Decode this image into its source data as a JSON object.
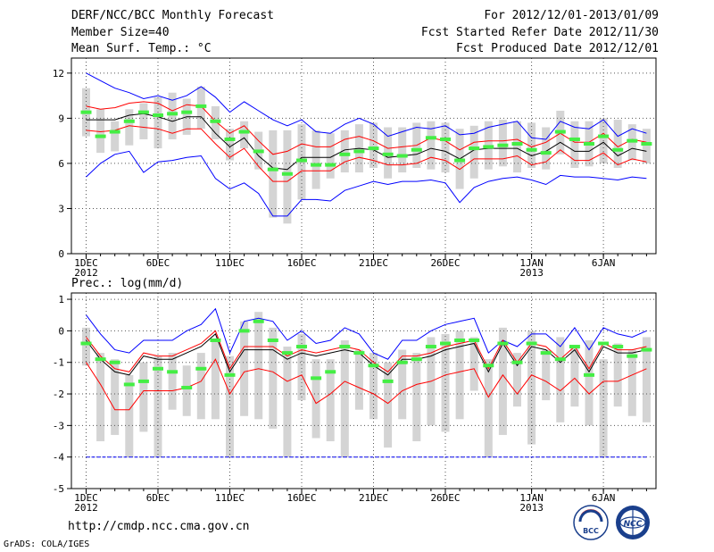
{
  "header": {
    "title": "DERF/NCC/BCC Monthly Forecast",
    "member_size": "Member Size=40",
    "variable": "Mean Surf. Temp.: °C",
    "forecast_period": "For 2012/12/01-2013/01/09",
    "started_date": "Fcst Started Refer Date 2012/11/30",
    "produced_date": "Fcst Produced Date 2012/12/01"
  },
  "footer": {
    "url": "http://cmdp.ncc.cma.gov.cn",
    "grads_credit": "GrADS: COLA/IGES"
  },
  "logos": {
    "bcc": "BCC",
    "ncc": "NCC"
  },
  "colors": {
    "box": "#d4d4d4",
    "mean": "#000000",
    "spread": "#ff0000",
    "envelope": "#0000ff",
    "marker": "#44ee44"
  },
  "chart_data": [
    {
      "type": "box",
      "title": "Mean Surf. Temp.: °C",
      "ylim": [
        0,
        13
      ],
      "yticks": [
        0,
        3,
        6,
        9,
        12
      ],
      "xticks": [
        {
          "day": 1,
          "label": "1DEC",
          "sub": "2012"
        },
        {
          "day": 6,
          "label": "6DEC",
          "sub": ""
        },
        {
          "day": 11,
          "label": "11DEC",
          "sub": ""
        },
        {
          "day": 16,
          "label": "16DEC",
          "sub": ""
        },
        {
          "day": 21,
          "label": "21DEC",
          "sub": ""
        },
        {
          "day": 26,
          "label": "26DEC",
          "sub": ""
        },
        {
          "day": 32,
          "label": "1JAN",
          "sub": "2013"
        },
        {
          "day": 37,
          "label": "6JAN",
          "sub": ""
        }
      ],
      "days": [
        1,
        2,
        3,
        4,
        5,
        6,
        7,
        8,
        9,
        10,
        11,
        12,
        13,
        14,
        15,
        16,
        17,
        18,
        19,
        20,
        21,
        22,
        23,
        24,
        25,
        26,
        27,
        28,
        29,
        30,
        31,
        32,
        33,
        34,
        35,
        36,
        37,
        38,
        39,
        40
      ],
      "box_low": [
        7.8,
        6.7,
        6.8,
        7.2,
        7.6,
        7.0,
        7.6,
        7.9,
        8.3,
        7.6,
        6.2,
        7.0,
        5.6,
        2.4,
        2.0,
        3.6,
        4.3,
        5.0,
        5.4,
        5.4,
        5.7,
        5.0,
        5.4,
        5.7,
        5.6,
        5.4,
        4.3,
        5.0,
        5.6,
        5.8,
        5.4,
        5.7,
        5.6,
        6.6,
        5.7,
        5.8,
        6.0,
        5.7,
        6.2,
        6.0
      ],
      "box_high": [
        11.0,
        9.6,
        8.8,
        9.6,
        10.0,
        10.4,
        10.7,
        10.3,
        11.1,
        9.8,
        8.3,
        8.8,
        8.1,
        8.2,
        8.2,
        8.6,
        8.2,
        8.0,
        8.2,
        8.6,
        8.7,
        8.4,
        8.4,
        8.7,
        8.8,
        8.7,
        8.3,
        8.5,
        8.8,
        8.9,
        8.8,
        8.7,
        8.4,
        9.5,
        8.8,
        8.8,
        9.0,
        8.9,
        8.6,
        8.3
      ],
      "marker": [
        9.4,
        7.8,
        8.1,
        8.8,
        9.4,
        9.2,
        9.3,
        9.4,
        9.8,
        8.8,
        7.6,
        8.1,
        6.8,
        5.6,
        5.3,
        6.2,
        5.9,
        5.9,
        6.6,
        6.8,
        7.0,
        6.6,
        6.5,
        6.9,
        7.7,
        7.6,
        6.2,
        7.0,
        7.1,
        7.2,
        7.3,
        6.9,
        6.7,
        8.1,
        7.6,
        7.3,
        7.8,
        6.9,
        7.5,
        7.3
      ],
      "ens_mean": [
        8.9,
        8.9,
        8.9,
        9.2,
        9.3,
        9.1,
        8.8,
        9.1,
        9.1,
        8.0,
        7.1,
        7.7,
        6.5,
        5.7,
        5.6,
        6.4,
        6.4,
        6.4,
        6.9,
        7.0,
        6.9,
        6.4,
        6.5,
        6.6,
        7.0,
        6.8,
        6.3,
        6.9,
        7.0,
        7.0,
        7.0,
        6.5,
        6.8,
        7.4,
        6.8,
        6.8,
        7.4,
        6.5,
        7.0,
        6.8
      ],
      "sd_high": [
        9.8,
        9.6,
        9.7,
        10.0,
        10.1,
        10.0,
        9.5,
        9.9,
        9.8,
        8.8,
        8.0,
        8.5,
        7.5,
        6.6,
        6.8,
        7.3,
        7.1,
        7.1,
        7.6,
        7.8,
        7.5,
        7.0,
        7.1,
        7.2,
        7.7,
        7.5,
        6.9,
        7.4,
        7.5,
        7.5,
        7.6,
        7.1,
        7.4,
        8.0,
        7.4,
        7.4,
        8.0,
        7.1,
        7.6,
        7.4
      ],
      "sd_low": [
        8.2,
        8.1,
        8.2,
        8.5,
        8.4,
        8.3,
        8.0,
        8.3,
        8.3,
        7.3,
        6.4,
        7.0,
        5.8,
        4.8,
        4.8,
        5.5,
        5.5,
        5.5,
        6.1,
        6.4,
        6.2,
        5.9,
        5.9,
        6.0,
        6.4,
        6.2,
        5.6,
        6.3,
        6.3,
        6.3,
        6.5,
        5.9,
        6.1,
        6.9,
        6.2,
        6.2,
        6.7,
        5.9,
        6.3,
        6.1
      ],
      "env_max": [
        12.0,
        11.5,
        11.0,
        10.7,
        10.3,
        10.5,
        10.2,
        10.5,
        11.1,
        10.4,
        9.4,
        10.1,
        9.5,
        8.9,
        8.5,
        8.9,
        8.1,
        8.0,
        8.6,
        9.0,
        8.6,
        7.8,
        8.1,
        8.4,
        8.3,
        8.5,
        7.9,
        8.0,
        8.4,
        8.6,
        8.8,
        7.7,
        7.6,
        8.8,
        8.4,
        8.3,
        8.9,
        7.8,
        8.3,
        8.0
      ],
      "env_min": [
        5.1,
        6.0,
        6.6,
        6.8,
        5.4,
        6.1,
        6.2,
        6.4,
        6.5,
        5.0,
        4.3,
        4.7,
        4.0,
        2.5,
        2.5,
        3.6,
        3.6,
        3.5,
        4.2,
        4.5,
        4.8,
        4.6,
        4.8,
        4.8,
        4.9,
        4.7,
        3.4,
        4.4,
        4.8,
        5.0,
        5.1,
        4.9,
        4.6,
        5.2,
        5.1,
        5.1,
        5.0,
        4.9,
        5.1,
        5.0
      ]
    },
    {
      "type": "box",
      "title": "Prec.: log(mm/d)",
      "ylim": [
        -5,
        1.2
      ],
      "yticks": [
        -5,
        -4,
        -3,
        -2,
        -1,
        0,
        1
      ],
      "xticks": [
        {
          "day": 1,
          "label": "1DEC",
          "sub": "2012"
        },
        {
          "day": 6,
          "label": "6DEC",
          "sub": ""
        },
        {
          "day": 11,
          "label": "11DEC",
          "sub": ""
        },
        {
          "day": 16,
          "label": "16DEC",
          "sub": ""
        },
        {
          "day": 21,
          "label": "21DEC",
          "sub": ""
        },
        {
          "day": 26,
          "label": "26DEC",
          "sub": ""
        },
        {
          "day": 32,
          "label": "1JAN",
          "sub": "2013"
        },
        {
          "day": 37,
          "label": "6JAN",
          "sub": ""
        }
      ],
      "days": [
        1,
        2,
        3,
        4,
        5,
        6,
        7,
        8,
        9,
        10,
        11,
        12,
        13,
        14,
        15,
        16,
        17,
        18,
        19,
        20,
        21,
        22,
        23,
        24,
        25,
        26,
        27,
        28,
        29,
        30,
        31,
        32,
        33,
        34,
        35,
        36,
        37,
        38,
        39,
        40
      ],
      "box_low": [
        -1.1,
        -3.5,
        -3.3,
        -4.0,
        -3.2,
        -4.0,
        -2.5,
        -2.7,
        -2.8,
        -2.8,
        -4.0,
        -2.7,
        -2.8,
        -3.1,
        -4.0,
        -2.2,
        -3.4,
        -3.5,
        -4.0,
        -2.5,
        -2.8,
        -3.7,
        -2.8,
        -3.5,
        -3.0,
        -3.2,
        -2.8,
        -1.9,
        -4.0,
        -3.3,
        -2.4,
        -3.6,
        -2.2,
        -2.9,
        -2.4,
        -3.0,
        -4.0,
        -2.4,
        -2.7,
        -2.9
      ],
      "box_high": [
        0.1,
        -0.7,
        -0.9,
        -1.4,
        -1.0,
        -0.8,
        -0.7,
        -1.1,
        -0.7,
        -0.3,
        -0.8,
        0.3,
        0.6,
        0.1,
        -0.5,
        -0.1,
        -0.9,
        -0.9,
        -0.3,
        -0.6,
        -0.7,
        -1.0,
        -0.6,
        -0.7,
        -0.2,
        -0.1,
        0.0,
        -0.2,
        -0.9,
        0.1,
        -0.7,
        0.0,
        -0.6,
        -0.2,
        -0.5,
        -0.3,
        -0.9,
        -0.4,
        -0.6,
        -0.2
      ],
      "marker": [
        -0.4,
        -0.9,
        -1.0,
        -1.7,
        -1.6,
        -1.2,
        -1.3,
        -1.8,
        -1.2,
        -0.3,
        -1.4,
        0.0,
        0.3,
        -0.3,
        -0.7,
        -0.5,
        -1.5,
        -1.3,
        -0.5,
        -0.7,
        -1.1,
        -1.6,
        -1.0,
        -0.9,
        -0.5,
        -0.4,
        -0.3,
        -0.3,
        -1.1,
        -0.4,
        -1.0,
        -0.4,
        -0.7,
        -0.9,
        -0.5,
        -1.4,
        -0.4,
        -0.5,
        -0.8,
        -0.6
      ],
      "ens_mean": [
        -0.3,
        -0.9,
        -1.3,
        -1.4,
        -0.8,
        -0.9,
        -0.9,
        -0.7,
        -0.5,
        -0.1,
        -1.3,
        -0.6,
        -0.6,
        -0.6,
        -0.9,
        -0.7,
        -0.8,
        -0.7,
        -0.6,
        -0.7,
        -1.1,
        -1.4,
        -0.9,
        -0.9,
        -0.8,
        -0.6,
        -0.5,
        -0.4,
        -1.3,
        -0.4,
        -1.1,
        -0.5,
        -0.6,
        -1.0,
        -0.6,
        -1.3,
        -0.5,
        -0.7,
        -0.7,
        -0.6
      ],
      "sd_high": [
        -0.2,
        -0.8,
        -1.2,
        -1.3,
        -0.7,
        -0.8,
        -0.8,
        -0.6,
        -0.4,
        0.0,
        -1.2,
        -0.5,
        -0.5,
        -0.5,
        -0.8,
        -0.6,
        -0.7,
        -0.6,
        -0.5,
        -0.6,
        -1.0,
        -1.3,
        -0.8,
        -0.8,
        -0.7,
        -0.5,
        -0.4,
        -0.3,
        -1.2,
        -0.3,
        -1.0,
        -0.4,
        -0.5,
        -0.9,
        -0.5,
        -1.2,
        -0.4,
        -0.6,
        -0.6,
        -0.5
      ],
      "sd_low": [
        -1.0,
        -1.7,
        -2.5,
        -2.5,
        -1.9,
        -1.9,
        -1.9,
        -1.8,
        -1.6,
        -0.9,
        -2.0,
        -1.3,
        -1.2,
        -1.3,
        -1.6,
        -1.4,
        -2.3,
        -2.0,
        -1.6,
        -1.8,
        -2.0,
        -2.3,
        -1.9,
        -1.7,
        -1.6,
        -1.4,
        -1.3,
        -1.2,
        -2.1,
        -1.4,
        -2.0,
        -1.4,
        -1.6,
        -1.9,
        -1.5,
        -2.0,
        -1.6,
        -1.6,
        -1.4,
        -1.2
      ],
      "env_max": [
        0.5,
        -0.1,
        -0.6,
        -0.7,
        -0.3,
        -0.3,
        -0.3,
        0.0,
        0.2,
        0.7,
        -0.7,
        0.3,
        0.4,
        0.3,
        -0.3,
        0.0,
        -0.4,
        -0.3,
        0.1,
        -0.1,
        -0.7,
        -0.9,
        -0.3,
        -0.3,
        0.0,
        0.2,
        0.3,
        0.4,
        -0.7,
        -0.3,
        -0.5,
        -0.1,
        -0.1,
        -0.5,
        0.1,
        -0.6,
        0.1,
        -0.1,
        -0.2,
        0.0
      ],
      "env_min": [
        -4.0,
        -4.0,
        -4.0,
        -4.0,
        -4.0,
        -4.0,
        -4.0,
        -4.0,
        -4.0,
        -4.0,
        -4.0,
        -4.0,
        -4.0,
        -4.0,
        -4.0,
        -4.0,
        -4.0,
        -4.0,
        -4.0,
        -4.0,
        -4.0,
        -4.0,
        -4.0,
        -4.0,
        -4.0,
        -4.0,
        -4.0,
        -4.0,
        -4.0,
        -4.0,
        -4.0,
        -4.0,
        -4.0,
        -4.0,
        -4.0,
        -4.0,
        -4.0,
        -4.0,
        -4.0,
        -4.0
      ]
    }
  ]
}
